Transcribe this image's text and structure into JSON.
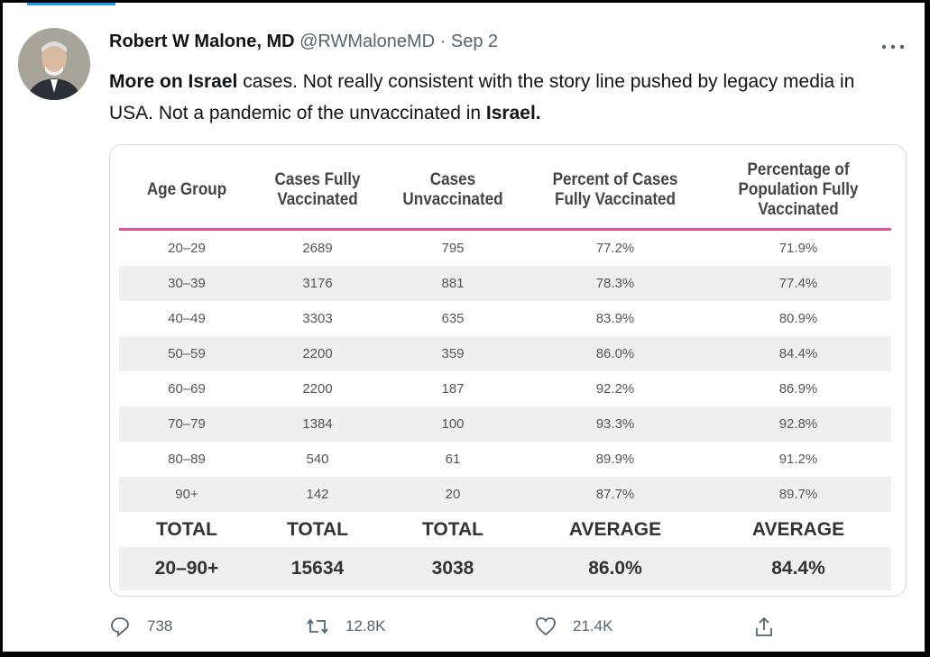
{
  "tweet": {
    "author_name": "Robert W Malone, MD",
    "handle": "@RWMaloneMD",
    "separator": "·",
    "date": "Sep 2",
    "text": [
      {
        "text": "More on Israel",
        "bold": true
      },
      {
        "text": " cases.  Not really consistent with the story line pushed by legacy media in USA.  Not a pandemic of the unvaccinated in ",
        "bold": false
      },
      {
        "text": "Israel.",
        "bold": true
      }
    ],
    "table": {
      "headers": [
        [
          "Age Group"
        ],
        [
          "Cases Fully",
          "Vaccinated"
        ],
        [
          "Cases",
          "Unvaccinated"
        ],
        [
          "Percent of Cases",
          "Fully Vaccinated"
        ],
        [
          "Percentage of",
          "Population Fully",
          "Vaccinated"
        ]
      ],
      "rows": [
        [
          "20–29",
          "2689",
          "795",
          "77.2%",
          "71.9%"
        ],
        [
          "30–39",
          "3176",
          "881",
          "78.3%",
          "77.4%"
        ],
        [
          "40–49",
          "3303",
          "635",
          "83.9%",
          "80.9%"
        ],
        [
          "50–59",
          "2200",
          "359",
          "86.0%",
          "84.4%"
        ],
        [
          "60–69",
          "2200",
          "187",
          "92.2%",
          "86.9%"
        ],
        [
          "70–79",
          "1384",
          "100",
          "93.3%",
          "92.8%"
        ],
        [
          "80–89",
          "540",
          "61",
          "89.9%",
          "91.2%"
        ],
        [
          "90+",
          "142",
          "20",
          "87.7%",
          "89.7%"
        ]
      ],
      "total_labels": [
        "TOTAL",
        "TOTAL",
        "TOTAL",
        "AVERAGE",
        "AVERAGE"
      ],
      "totals": [
        "20–90+",
        "15634",
        "3038",
        "86.0%",
        "84.4%"
      ]
    },
    "actions": {
      "replies": "738",
      "retweets": "12.8K",
      "likes": "21.4K"
    }
  }
}
